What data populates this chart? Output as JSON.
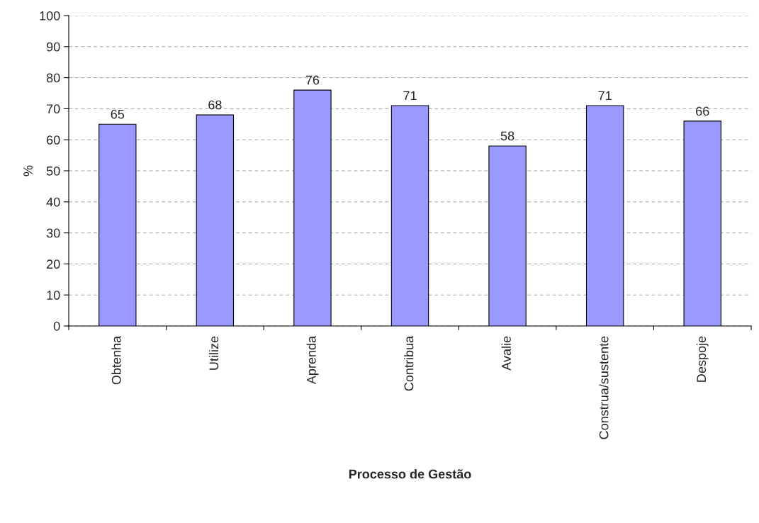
{
  "chart_data": {
    "type": "bar",
    "xlabel": "Processo de Gestão",
    "ylabel": "%",
    "categories": [
      "Obtenha",
      "Utilize",
      "Aprenda",
      "Contribua",
      "Avalie",
      "Construa/sustente",
      "Despoje"
    ],
    "values": [
      65,
      68,
      76,
      71,
      58,
      71,
      66
    ],
    "color": "#9999ff",
    "ylim": [
      0,
      100
    ],
    "yticks": [
      0,
      10,
      20,
      30,
      40,
      50,
      60,
      70,
      80,
      90,
      100
    ],
    "grid": "y",
    "data_labels": true
  }
}
